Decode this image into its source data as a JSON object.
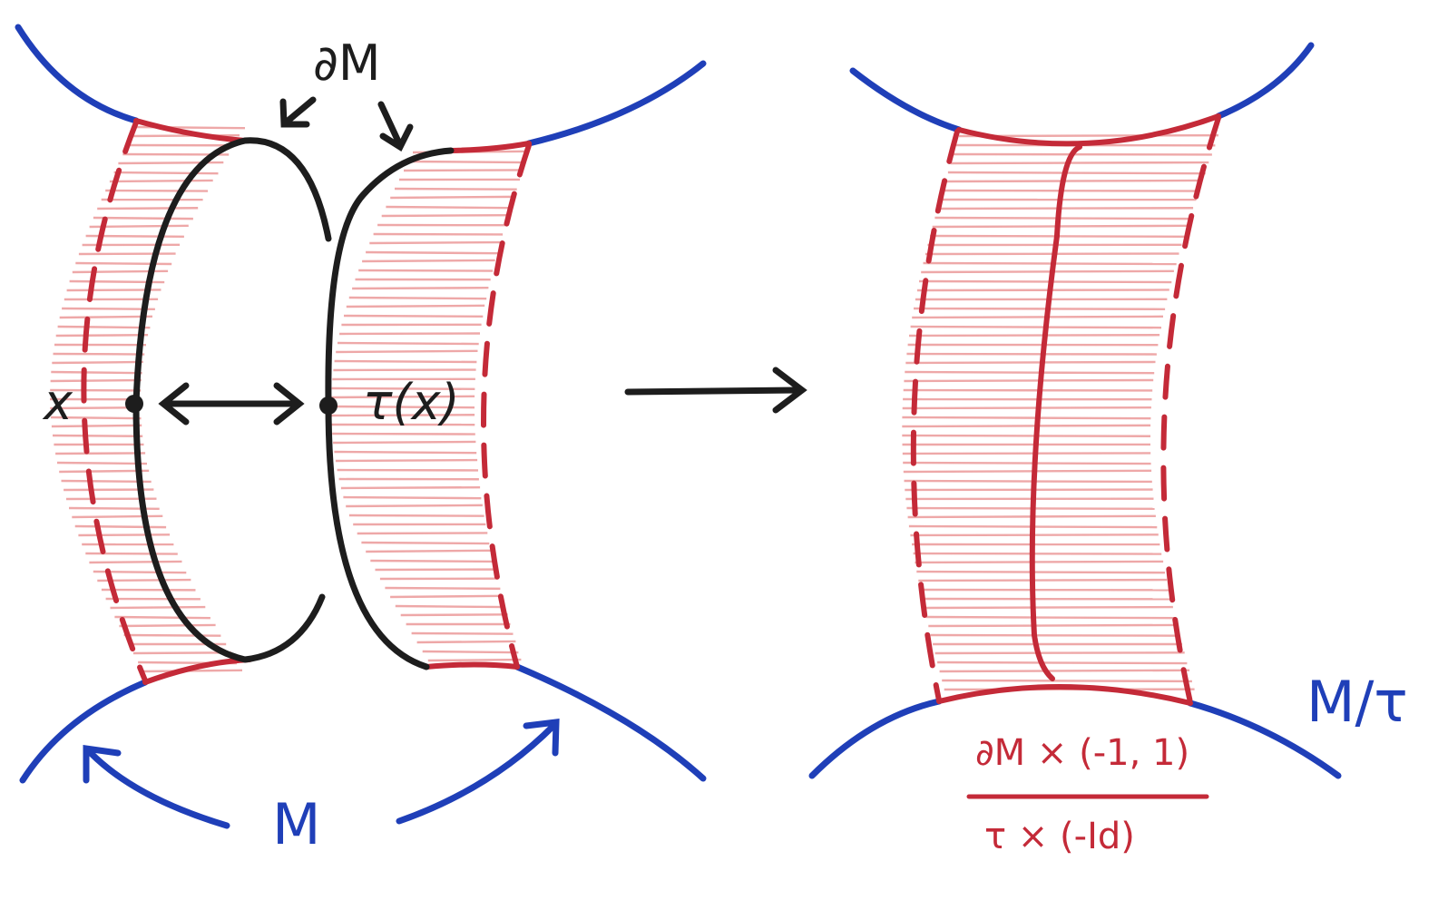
{
  "labels": {
    "boundary": "∂M",
    "point": "x",
    "image_point": "τ(x)",
    "manifold": "M",
    "quotient": "M/τ",
    "fraction_numerator": "∂M × (-1, 1)",
    "fraction_denominator": "τ × (-Id)"
  },
  "colors": {
    "manifold": "#1f3fb8",
    "collar": "#c42a38",
    "hatch": "#e98b8b",
    "boundary": "#1d1d1d"
  }
}
